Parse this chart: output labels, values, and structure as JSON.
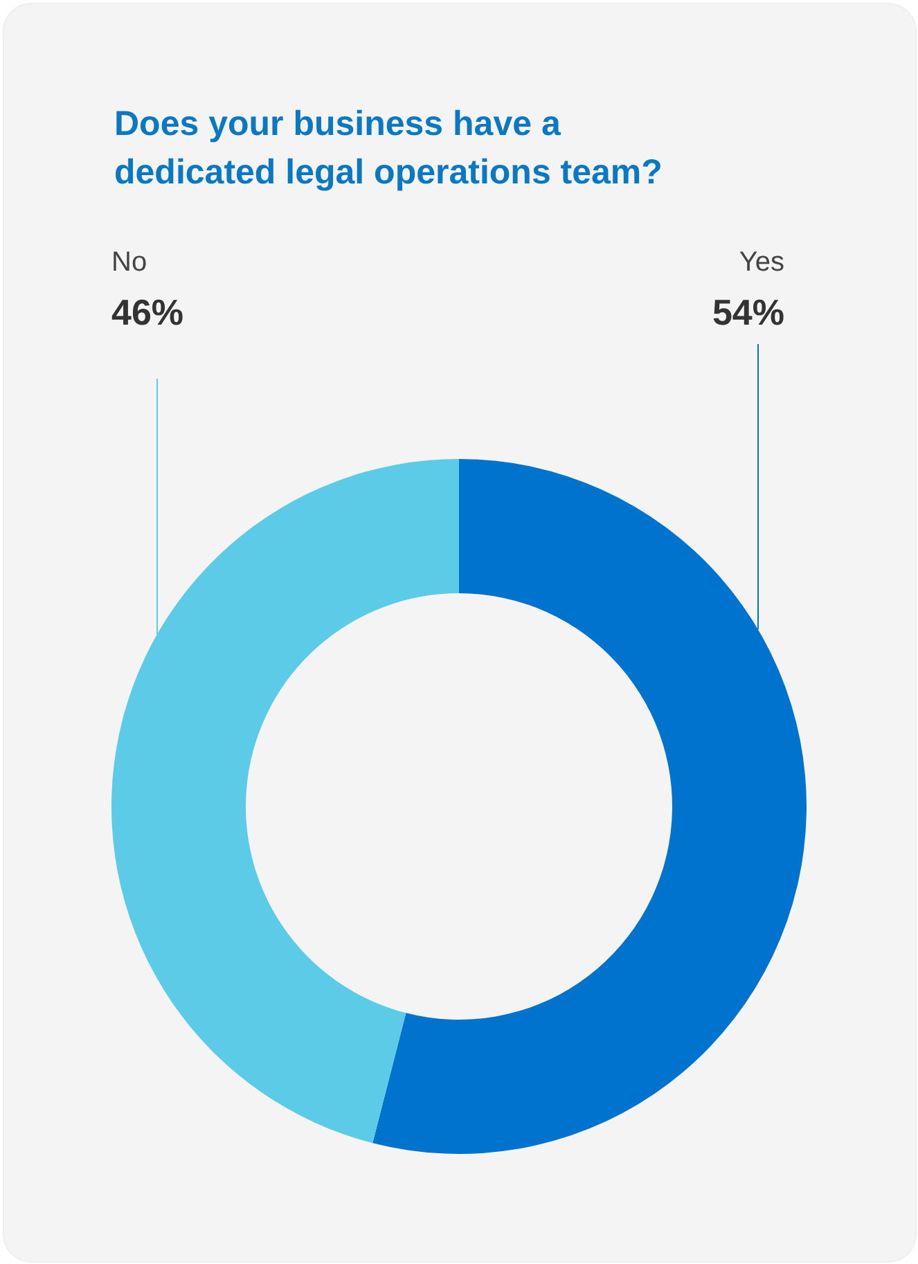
{
  "chart_data": {
    "type": "donut",
    "title": "Does your business have a dedicated legal operations team?",
    "categories": [
      "Yes",
      "No"
    ],
    "values": [
      54,
      46
    ],
    "colors": [
      "#0073cf",
      "#5bcbe8"
    ],
    "value_labels": [
      "54%",
      "46%"
    ]
  }
}
